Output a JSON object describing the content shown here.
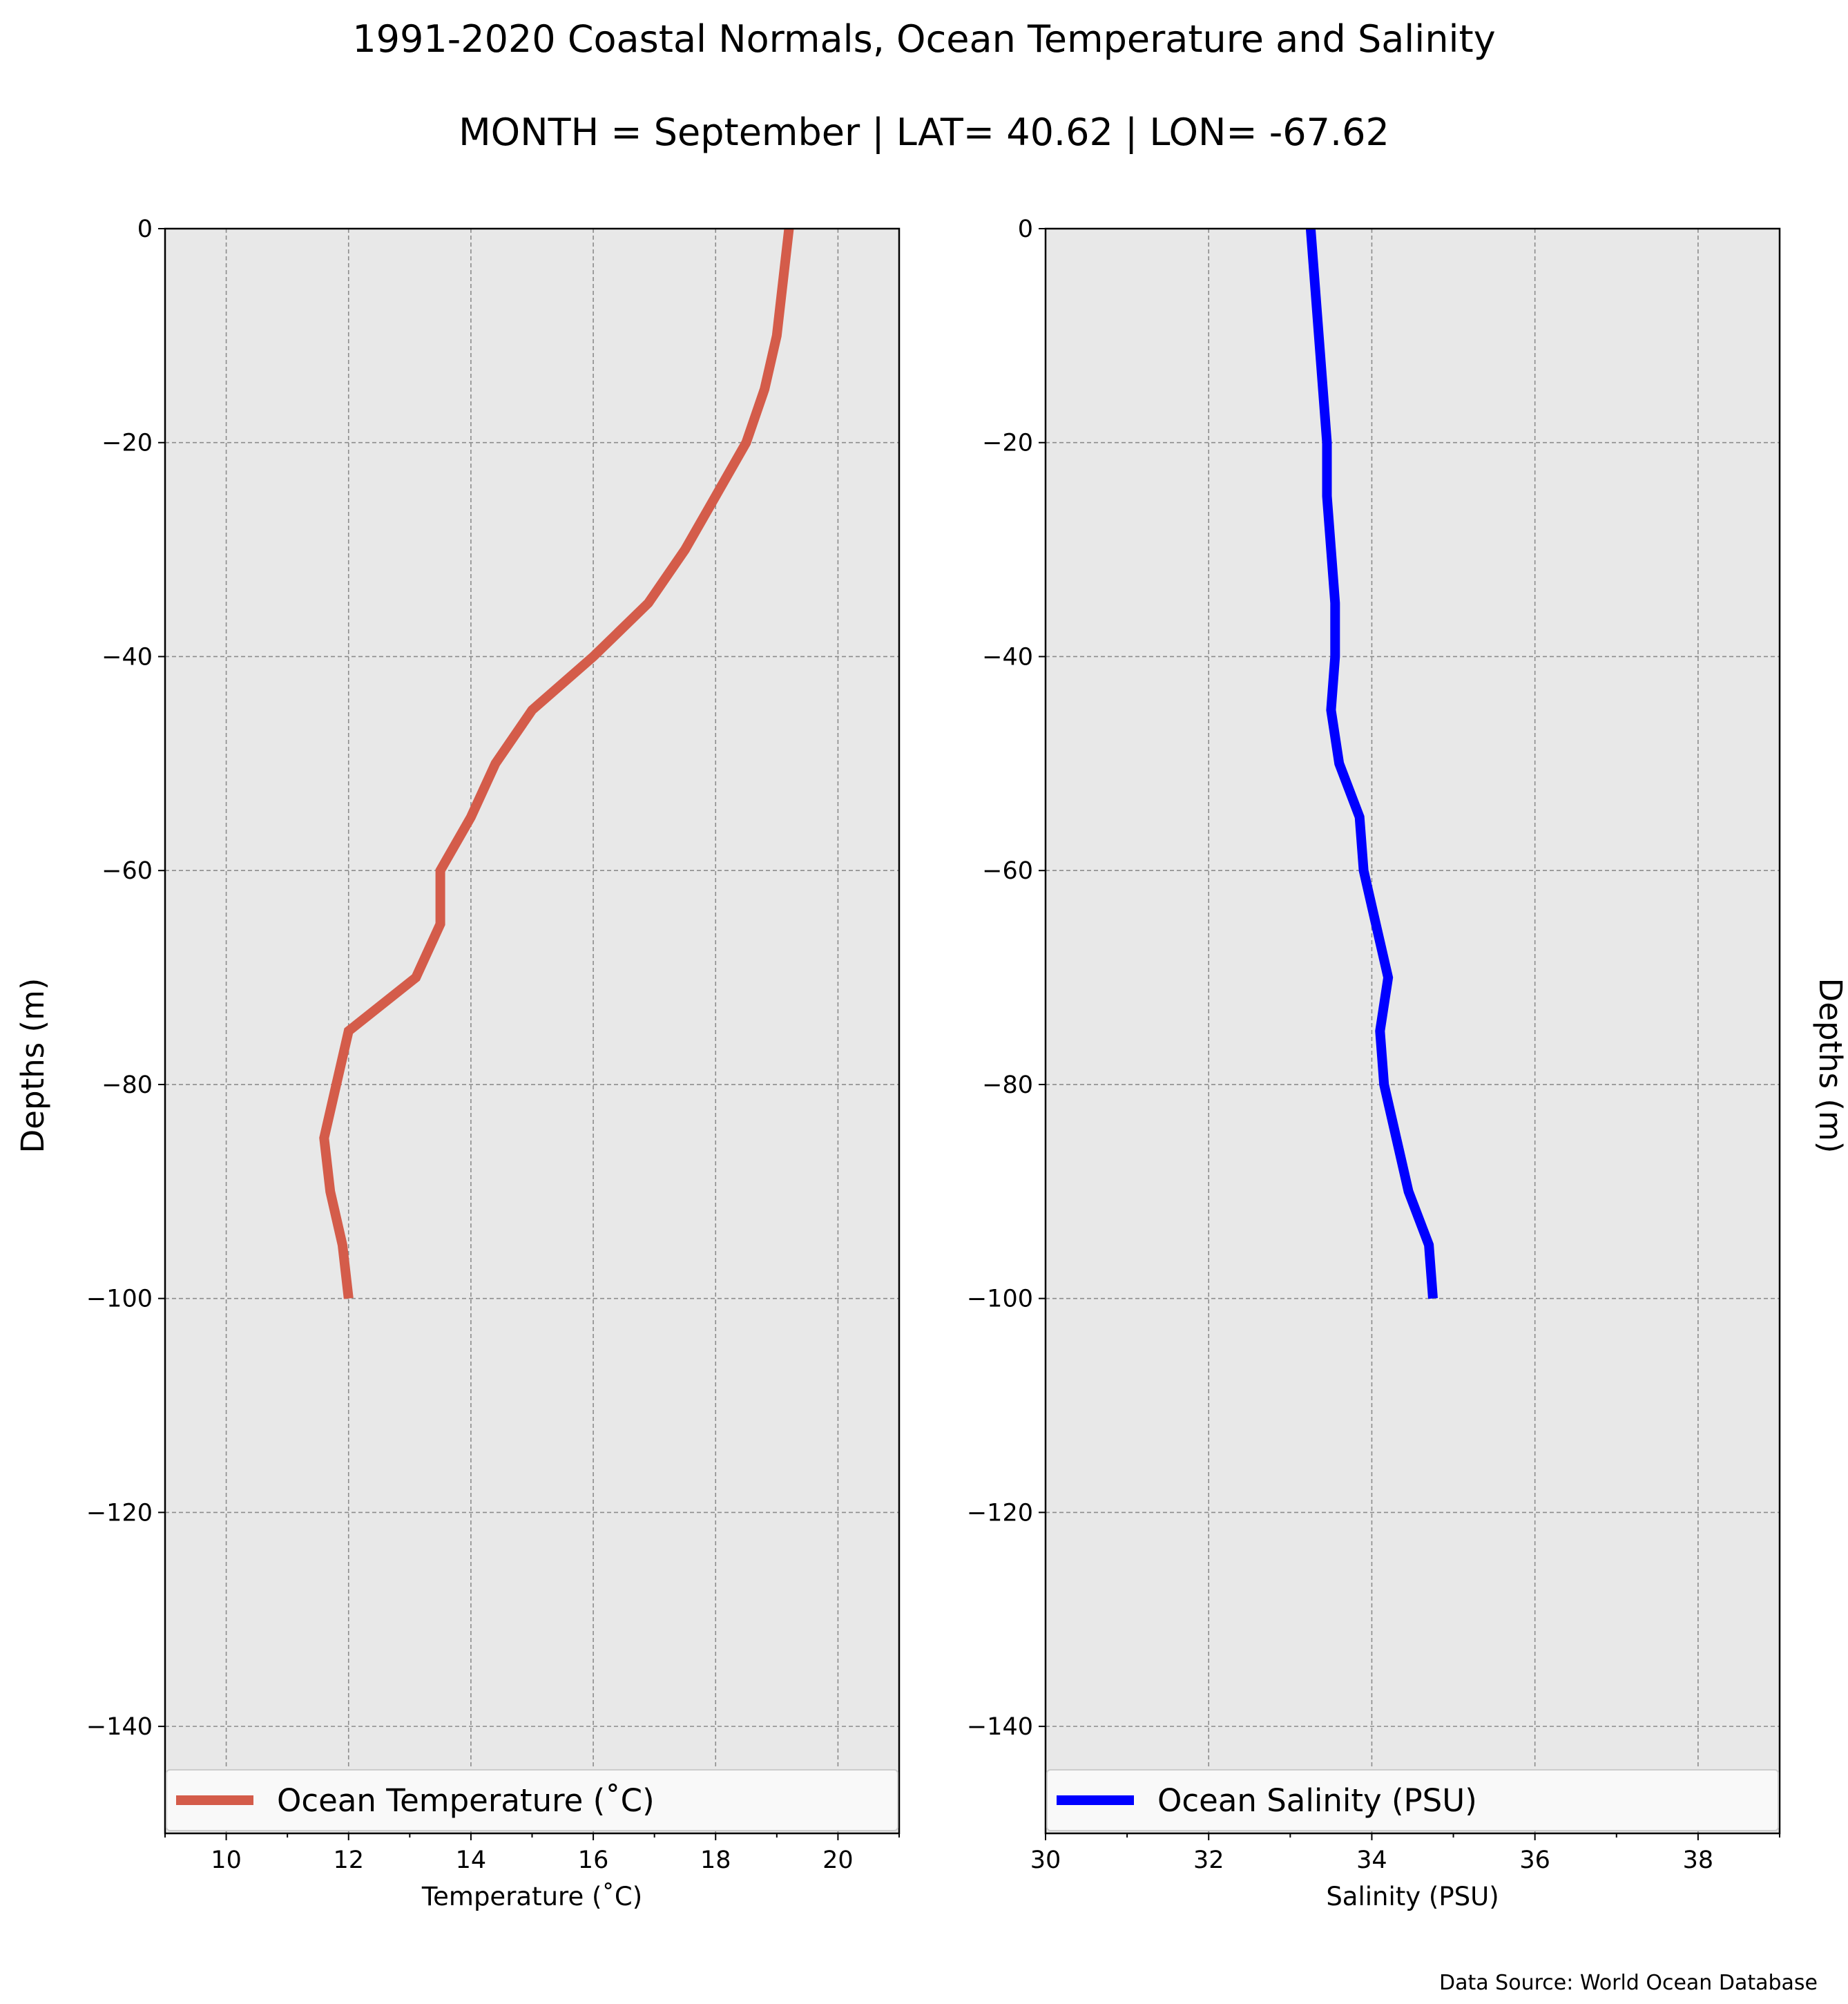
{
  "figure": {
    "title": "1991-2020 Coastal Normals, Ocean Temperature and Salinity",
    "subtitle": "MONTH = September | LAT= 40.62 | LON= -67.62",
    "source": "Data Source: World Ocean Database"
  },
  "chart_data": [
    {
      "type": "line",
      "xlabel": "Temperature ($^\\circ$C)",
      "xlabel_display": "Temperature (˚C)",
      "ylabel": "Depths (m)",
      "xlim": [
        9,
        21
      ],
      "ylim": [
        -150,
        0
      ],
      "xticks": [
        10,
        12,
        14,
        16,
        18,
        20
      ],
      "xticks_minor": [
        9,
        11,
        13,
        15,
        17,
        19,
        21
      ],
      "yticks": [
        0,
        -20,
        -40,
        -60,
        -80,
        -100,
        -120,
        -140
      ],
      "grid": true,
      "legend_position": "bottom",
      "series": [
        {
          "name": "Ocean Temperature (˚C)",
          "color": "#d45c4a",
          "x": [
            19.2,
            19.0,
            18.8,
            18.5,
            18.0,
            17.5,
            16.9,
            16.0,
            15.0,
            14.4,
            14.0,
            13.5,
            13.5,
            13.1,
            12.0,
            11.8,
            11.6,
            11.7,
            11.9,
            12.0
          ],
          "y": [
            0,
            -10,
            -15,
            -20,
            -25,
            -30,
            -35,
            -40,
            -45,
            -50,
            -55,
            -60,
            -65,
            -70,
            -75,
            -80,
            -85,
            -90,
            -95,
            -100
          ]
        }
      ]
    },
    {
      "type": "line",
      "xlabel": "Salinity (PSU)",
      "ylabel": "Depths (m)",
      "ylabel_position": "right",
      "xlim": [
        30,
        39
      ],
      "ylim": [
        -150,
        0
      ],
      "xticks": [
        30,
        32,
        34,
        36,
        38
      ],
      "xticks_minor": [
        31,
        33,
        35,
        37,
        39
      ],
      "yticks": [
        0,
        -20,
        -40,
        -60,
        -80,
        -100,
        -120,
        -140
      ],
      "grid": true,
      "legend_position": "bottom",
      "series": [
        {
          "name": "Ocean Salinity (PSU)",
          "color": "#0000ff",
          "x": [
            33.25,
            33.3,
            33.35,
            33.4,
            33.45,
            33.45,
            33.5,
            33.55,
            33.55,
            33.5,
            33.6,
            33.85,
            33.9,
            34.05,
            34.2,
            34.1,
            34.15,
            34.3,
            34.45,
            34.7,
            34.75
          ],
          "y": [
            0,
            -5,
            -10,
            -15,
            -20,
            -25,
            -30,
            -35,
            -40,
            -45,
            -50,
            -55,
            -60,
            -65,
            -70,
            -75,
            -80,
            -85,
            -90,
            -95,
            -100
          ]
        }
      ]
    }
  ]
}
